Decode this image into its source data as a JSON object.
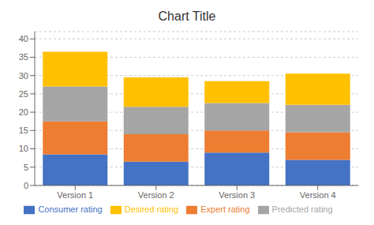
{
  "chart_data": {
    "type": "bar",
    "title": "Chart Title",
    "categories": [
      "Version 1",
      "Version 2",
      "Version 3",
      "Version 4"
    ],
    "series": [
      {
        "name": "Consumer rating",
        "color": "#4472C4",
        "values": [
          8.5,
          6.5,
          9.0,
          7.0
        ]
      },
      {
        "name": "Expert rating",
        "color": "#ED7D31",
        "values": [
          9.0,
          7.5,
          6.0,
          7.5
        ]
      },
      {
        "name": "Predicted rating",
        "color": "#A5A5A5",
        "values": [
          9.5,
          7.5,
          7.5,
          7.5
        ]
      },
      {
        "name": "Desired rating",
        "color": "#FFC000",
        "values": [
          9.5,
          8.0,
          6.0,
          8.5
        ]
      }
    ],
    "stacked": true,
    "ylim": [
      0,
      42
    ],
    "yticks": [
      0,
      5,
      10,
      15,
      20,
      25,
      30,
      35,
      40
    ],
    "grid": true,
    "legend": "bottom"
  }
}
